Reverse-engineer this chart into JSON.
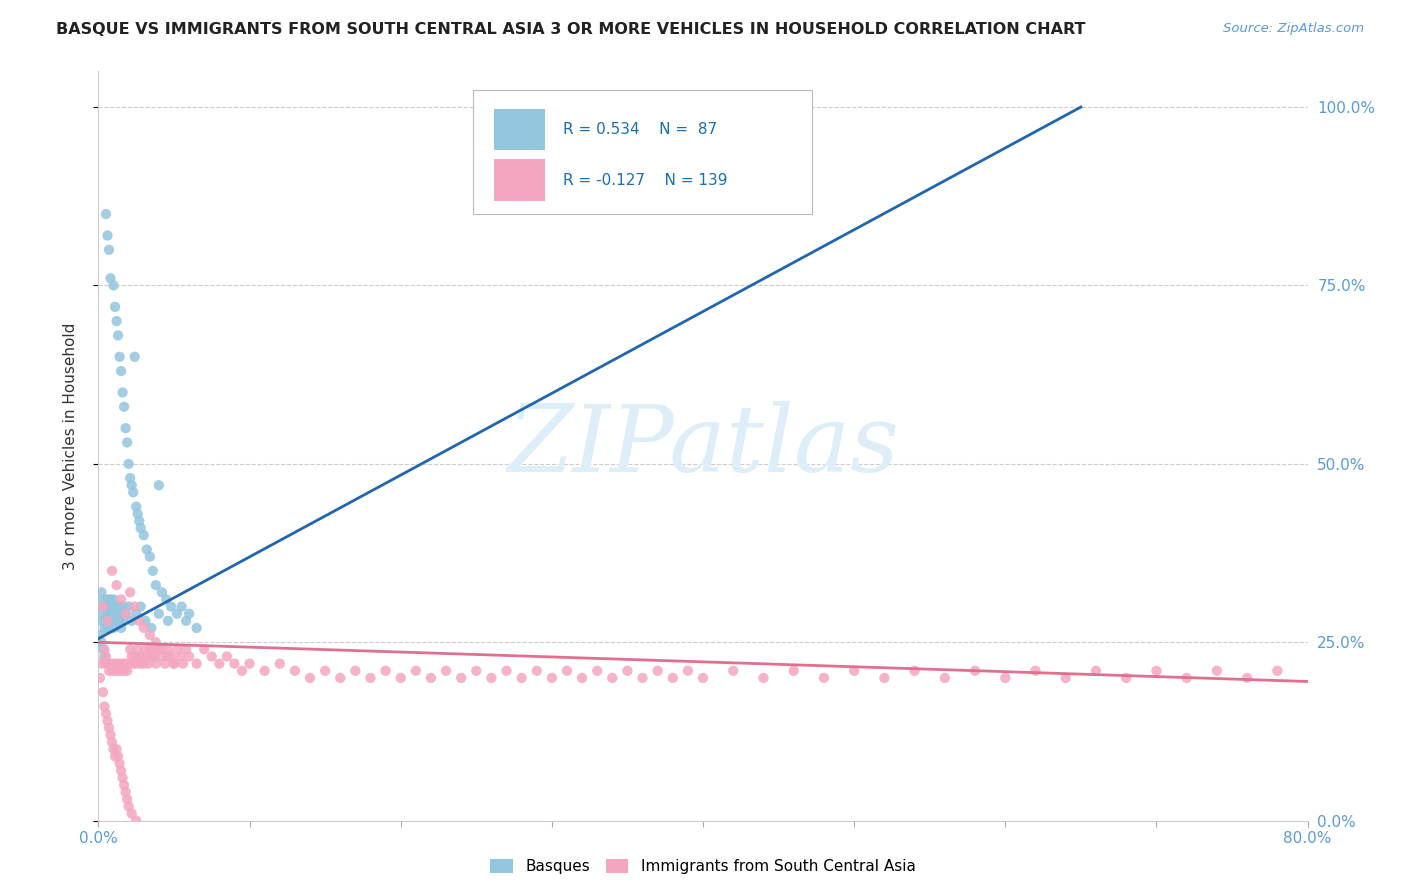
{
  "title": "BASQUE VS IMMIGRANTS FROM SOUTH CENTRAL ASIA 3 OR MORE VEHICLES IN HOUSEHOLD CORRELATION CHART",
  "source": "Source: ZipAtlas.com",
  "ylabel": "3 or more Vehicles in Household",
  "watermark": "ZIPatlas",
  "legend_basque_r": "R = 0.534",
  "legend_basque_n": "N =  87",
  "legend_immig_r": "R = -0.127",
  "legend_immig_n": "N = 139",
  "blue_color": "#92c5de",
  "pink_color": "#f4a6c0",
  "blue_line_color": "#2166ac",
  "pink_line_color": "#e07090",
  "basque_x": [
    0.001,
    0.002,
    0.002,
    0.003,
    0.003,
    0.004,
    0.004,
    0.005,
    0.005,
    0.005,
    0.006,
    0.006,
    0.006,
    0.007,
    0.007,
    0.007,
    0.008,
    0.008,
    0.008,
    0.009,
    0.009,
    0.01,
    0.01,
    0.01,
    0.011,
    0.011,
    0.012,
    0.012,
    0.013,
    0.013,
    0.014,
    0.014,
    0.015,
    0.015,
    0.016,
    0.016,
    0.017,
    0.018,
    0.019,
    0.02,
    0.021,
    0.022,
    0.023,
    0.024,
    0.025,
    0.026,
    0.027,
    0.028,
    0.03,
    0.032,
    0.034,
    0.036,
    0.038,
    0.04,
    0.042,
    0.045,
    0.048,
    0.052,
    0.058,
    0.065,
    0.001,
    0.002,
    0.003,
    0.004,
    0.005,
    0.006,
    0.007,
    0.008,
    0.009,
    0.01,
    0.011,
    0.012,
    0.013,
    0.014,
    0.015,
    0.016,
    0.018,
    0.02,
    0.022,
    0.025,
    0.028,
    0.031,
    0.035,
    0.04,
    0.046,
    0.055,
    0.06
  ],
  "basque_y": [
    0.3,
    0.28,
    0.32,
    0.29,
    0.31,
    0.3,
    0.27,
    0.28,
    0.85,
    0.3,
    0.29,
    0.82,
    0.31,
    0.27,
    0.8,
    0.3,
    0.28,
    0.76,
    0.31,
    0.29,
    0.3,
    0.27,
    0.75,
    0.3,
    0.28,
    0.72,
    0.29,
    0.7,
    0.3,
    0.68,
    0.28,
    0.65,
    0.29,
    0.63,
    0.3,
    0.6,
    0.58,
    0.55,
    0.53,
    0.5,
    0.48,
    0.47,
    0.46,
    0.65,
    0.44,
    0.43,
    0.42,
    0.41,
    0.4,
    0.38,
    0.37,
    0.35,
    0.33,
    0.47,
    0.32,
    0.31,
    0.3,
    0.29,
    0.28,
    0.27,
    0.26,
    0.25,
    0.24,
    0.23,
    0.22,
    0.27,
    0.28,
    0.29,
    0.3,
    0.31,
    0.29,
    0.3,
    0.28,
    0.29,
    0.27,
    0.28,
    0.29,
    0.3,
    0.28,
    0.29,
    0.3,
    0.28,
    0.27,
    0.29,
    0.28,
    0.3,
    0.29
  ],
  "immig_x": [
    0.001,
    0.002,
    0.003,
    0.004,
    0.004,
    0.005,
    0.005,
    0.006,
    0.006,
    0.007,
    0.007,
    0.008,
    0.008,
    0.009,
    0.009,
    0.01,
    0.01,
    0.011,
    0.011,
    0.012,
    0.012,
    0.013,
    0.013,
    0.014,
    0.014,
    0.015,
    0.015,
    0.016,
    0.016,
    0.017,
    0.017,
    0.018,
    0.018,
    0.019,
    0.019,
    0.02,
    0.02,
    0.021,
    0.022,
    0.022,
    0.023,
    0.024,
    0.025,
    0.025,
    0.026,
    0.027,
    0.028,
    0.029,
    0.03,
    0.031,
    0.032,
    0.033,
    0.034,
    0.035,
    0.036,
    0.037,
    0.038,
    0.04,
    0.042,
    0.044,
    0.046,
    0.048,
    0.05,
    0.052,
    0.054,
    0.056,
    0.058,
    0.06,
    0.065,
    0.07,
    0.075,
    0.08,
    0.085,
    0.09,
    0.095,
    0.1,
    0.11,
    0.12,
    0.13,
    0.14,
    0.15,
    0.16,
    0.17,
    0.18,
    0.19,
    0.2,
    0.21,
    0.22,
    0.23,
    0.24,
    0.25,
    0.26,
    0.27,
    0.28,
    0.29,
    0.3,
    0.31,
    0.32,
    0.33,
    0.34,
    0.35,
    0.36,
    0.37,
    0.38,
    0.39,
    0.4,
    0.42,
    0.44,
    0.46,
    0.48,
    0.5,
    0.52,
    0.54,
    0.56,
    0.58,
    0.6,
    0.62,
    0.64,
    0.66,
    0.68,
    0.7,
    0.72,
    0.74,
    0.76,
    0.78,
    0.003,
    0.006,
    0.009,
    0.012,
    0.015,
    0.018,
    0.021,
    0.024,
    0.027,
    0.03,
    0.034,
    0.038,
    0.042,
    0.046,
    0.05
  ],
  "immig_y": [
    0.2,
    0.22,
    0.18,
    0.24,
    0.16,
    0.23,
    0.15,
    0.22,
    0.14,
    0.21,
    0.13,
    0.22,
    0.12,
    0.21,
    0.11,
    0.22,
    0.1,
    0.21,
    0.09,
    0.22,
    0.1,
    0.21,
    0.09,
    0.22,
    0.08,
    0.21,
    0.07,
    0.22,
    0.06,
    0.21,
    0.05,
    0.22,
    0.04,
    0.21,
    0.03,
    0.22,
    0.02,
    0.24,
    0.23,
    0.01,
    0.22,
    0.23,
    0.22,
    0.0,
    0.24,
    0.23,
    0.22,
    0.23,
    0.22,
    0.24,
    0.23,
    0.22,
    0.24,
    0.23,
    0.24,
    0.23,
    0.22,
    0.24,
    0.23,
    0.22,
    0.24,
    0.23,
    0.22,
    0.24,
    0.23,
    0.22,
    0.24,
    0.23,
    0.22,
    0.24,
    0.23,
    0.22,
    0.23,
    0.22,
    0.21,
    0.22,
    0.21,
    0.22,
    0.21,
    0.2,
    0.21,
    0.2,
    0.21,
    0.2,
    0.21,
    0.2,
    0.21,
    0.2,
    0.21,
    0.2,
    0.21,
    0.2,
    0.21,
    0.2,
    0.21,
    0.2,
    0.21,
    0.2,
    0.21,
    0.2,
    0.21,
    0.2,
    0.21,
    0.2,
    0.21,
    0.2,
    0.21,
    0.2,
    0.21,
    0.2,
    0.21,
    0.2,
    0.21,
    0.2,
    0.21,
    0.2,
    0.21,
    0.2,
    0.21,
    0.2,
    0.21,
    0.2,
    0.21,
    0.2,
    0.21,
    0.3,
    0.28,
    0.35,
    0.33,
    0.31,
    0.29,
    0.32,
    0.3,
    0.28,
    0.27,
    0.26,
    0.25,
    0.24,
    0.23,
    0.22
  ],
  "blue_trend_x": [
    0.0,
    0.65
  ],
  "blue_trend_y": [
    0.255,
    1.0
  ],
  "pink_trend_x": [
    0.0,
    0.8
  ],
  "pink_trend_y": [
    0.25,
    0.195
  ],
  "xlim": [
    0.0,
    0.8
  ],
  "ylim": [
    0.0,
    1.05
  ],
  "xtick_vals": [
    0.0,
    0.1,
    0.2,
    0.3,
    0.4,
    0.5,
    0.6,
    0.7,
    0.8
  ],
  "xtick_labels": [
    "0.0%",
    "",
    "",
    "",
    "",
    "",
    "",
    "",
    "80.0%"
  ],
  "ytick_vals": [
    0.0,
    0.25,
    0.5,
    0.75,
    1.0
  ],
  "ytick_labels": [
    "0.0%",
    "25.0%",
    "50.0%",
    "75.0%",
    "100.0%"
  ]
}
